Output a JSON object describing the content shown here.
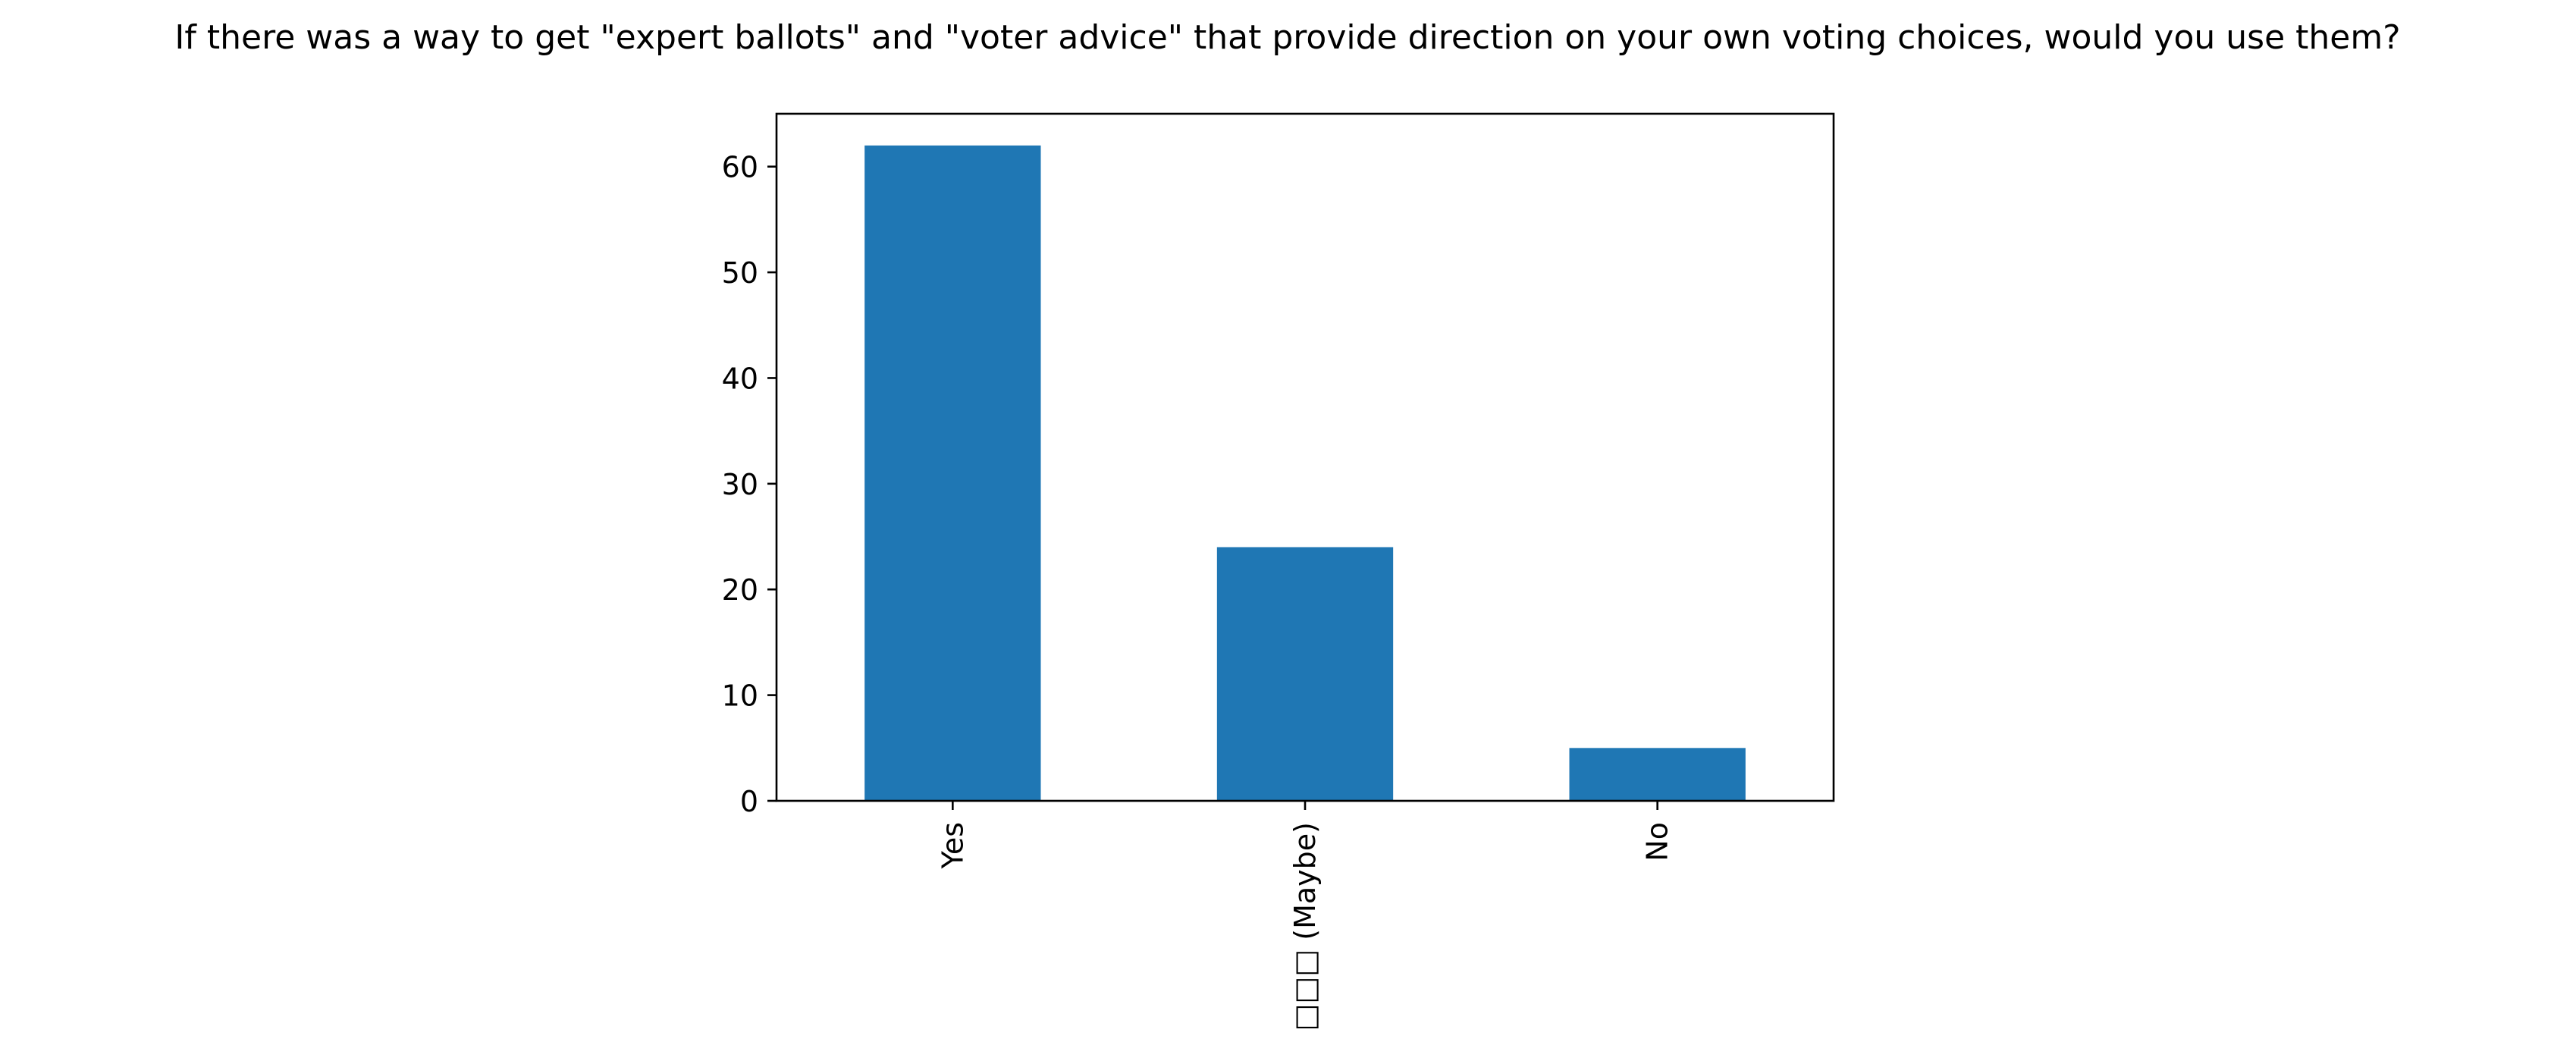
{
  "chart_data": {
    "type": "bar",
    "title": "If there was a way to get \"expert ballots\" and \"voter advice\" that provide direction on your own voting choices, would you use them?",
    "xlabel": "",
    "ylabel": "",
    "categories": [
      "Yes",
      "□□□ (Maybe)",
      "No"
    ],
    "values": [
      62,
      24,
      5
    ],
    "ylim": [
      0,
      65
    ],
    "yticks": [
      0,
      10,
      20,
      30,
      40,
      50,
      60
    ],
    "bar_color": "#1f77b4",
    "grid": false,
    "legend": "none"
  }
}
